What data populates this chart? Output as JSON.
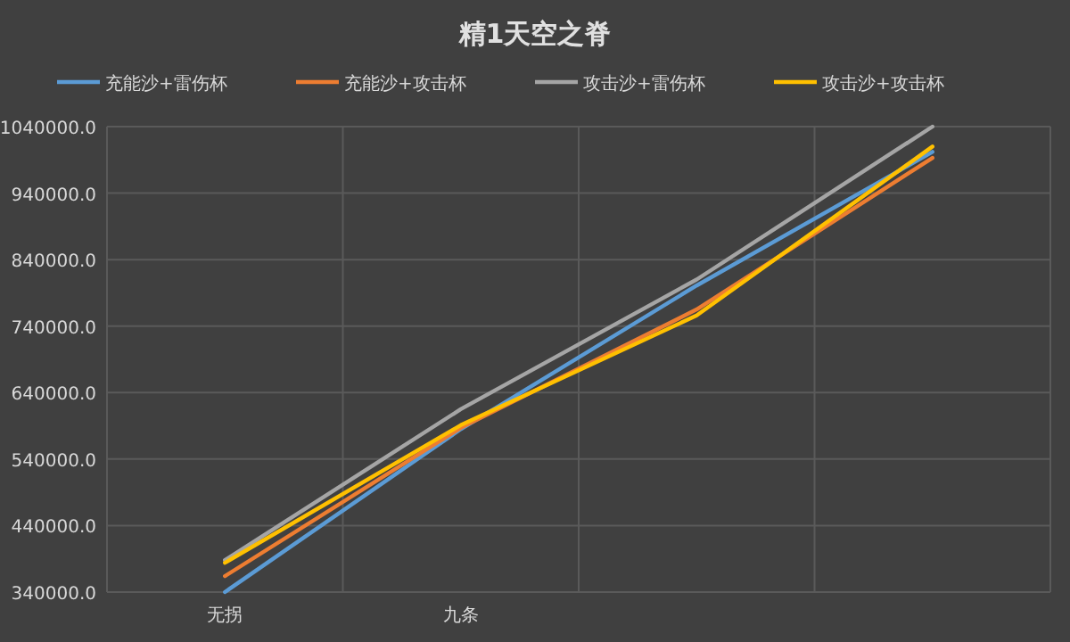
{
  "chart_data": {
    "type": "line",
    "title": "精1天空之脊",
    "categories": [
      "无拐",
      "九条",
      null,
      null
    ],
    "series": [
      {
        "name": "充能沙+雷伤杯",
        "color": "#5b9bd5",
        "values": [
          340000,
          585000,
          801000,
          1002000
        ]
      },
      {
        "name": "充能沙+攻击杯",
        "color": "#ed7d31",
        "values": [
          364000,
          587000,
          765000,
          993000
        ]
      },
      {
        "name": "攻击沙+雷伤杯",
        "color": "#a5a5a5",
        "values": [
          388000,
          615000,
          810000,
          1040000
        ]
      },
      {
        "name": "攻击沙+攻击杯",
        "color": "#ffc000",
        "values": [
          384000,
          591000,
          756000,
          1010000
        ]
      }
    ],
    "ylim": [
      340000,
      1040000
    ],
    "yticks": [
      {
        "value": 340000,
        "label": "340000.0"
      },
      {
        "value": 440000,
        "label": "440000.0"
      },
      {
        "value": 540000,
        "label": "540000.0"
      },
      {
        "value": 640000,
        "label": "640000.0"
      },
      {
        "value": 740000,
        "label": "740000.0"
      },
      {
        "value": 840000,
        "label": "840000.0"
      },
      {
        "value": 940000,
        "label": "940000.0"
      },
      {
        "value": 1040000,
        "label": "1040000.0"
      }
    ],
    "grid": true,
    "legend": "top",
    "line_style": "solid"
  }
}
